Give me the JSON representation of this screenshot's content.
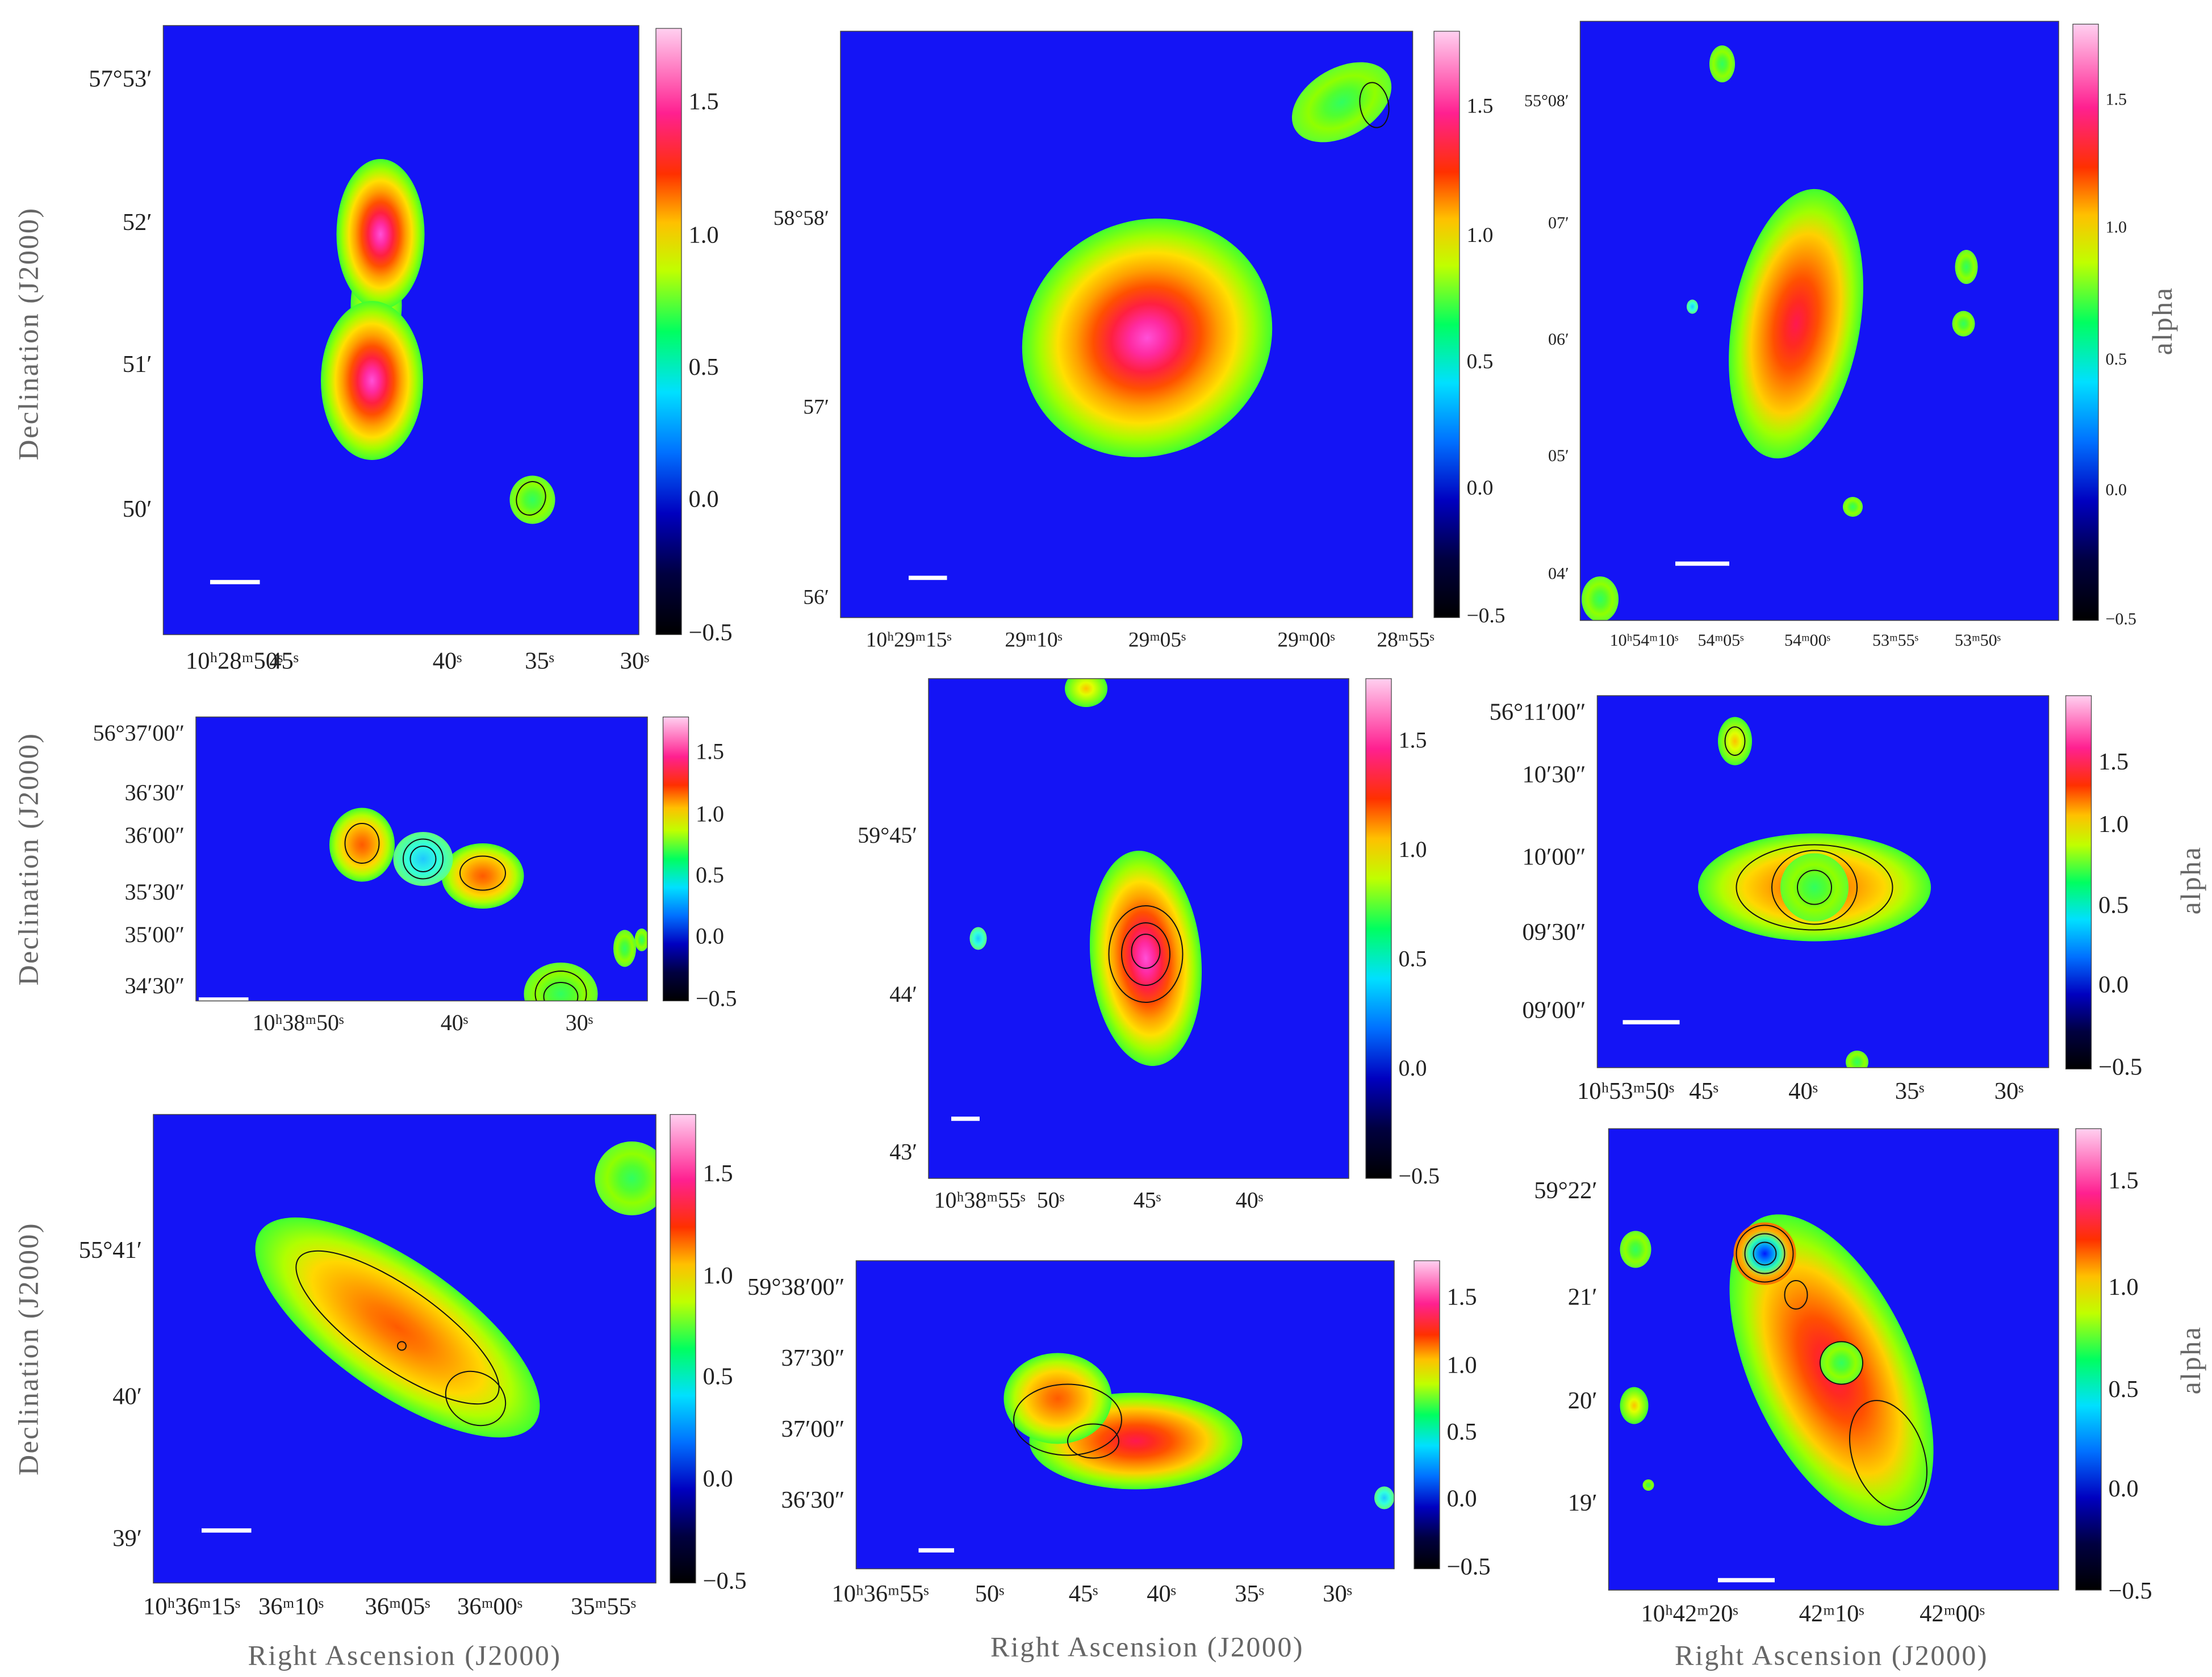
{
  "panels": [
    {
      "dec_labels": [
        "57°53′",
        "52′",
        "51′",
        "50′"
      ],
      "ra_labels": [
        "10ʰ28ᵐ50ˢ",
        "45ˢ",
        "40ˢ",
        "35ˢ",
        "30ˢ"
      ],
      "colorbar_ticks": [
        "1.5",
        "1.0",
        "0.5",
        "0.0",
        "−0.5"
      ],
      "ylabel": "Declination (J2000)"
    },
    {
      "dec_labels": [
        "58°58′",
        "57′",
        "56′"
      ],
      "ra_labels": [
        "10ʰ29ᵐ15ˢ",
        "29ᵐ10ˢ",
        "29ᵐ05ˢ",
        "29ᵐ00ˢ",
        "28ᵐ55ˢ"
      ],
      "colorbar_ticks": [
        "1.5",
        "1.0",
        "0.5",
        "0.0",
        "−0.5"
      ]
    },
    {
      "dec_labels": [
        "55°08′",
        "07′",
        "06′",
        "05′",
        "04′"
      ],
      "ra_labels": [
        "10ʰ54ᵐ10ˢ",
        "54ᵐ05ˢ",
        "54ᵐ00ˢ",
        "53ᵐ55ˢ",
        "53ᵐ50ˢ"
      ],
      "colorbar_ticks": [
        "1.5",
        "1.0",
        "0.5",
        "0.0",
        "−0.5"
      ],
      "cbar_label": "alpha"
    },
    {
      "dec_labels": [
        "56°37′00″",
        "36′30″",
        "36′00″",
        "35′30″",
        "35′00″",
        "34′30″"
      ],
      "ra_labels": [
        "10ʰ38ᵐ50ˢ",
        "40ˢ",
        "30ˢ"
      ],
      "colorbar_ticks": [
        "1.5",
        "1.0",
        "0.5",
        "0.0",
        "−0.5"
      ],
      "ylabel": "Declination (J2000)"
    },
    {
      "dec_labels": [
        "59°45′",
        "44′",
        "43′"
      ],
      "ra_labels": [
        "10ʰ38ᵐ55ˢ",
        "50ˢ",
        "45ˢ",
        "40ˢ"
      ],
      "colorbar_ticks": [
        "1.5",
        "1.0",
        "0.5",
        "0.0",
        "−0.5"
      ]
    },
    {
      "dec_labels": [
        "56°11′00″",
        "10′30″",
        "10′00″",
        "09′30″",
        "09′00″"
      ],
      "ra_labels": [
        "10ʰ53ᵐ50ˢ",
        "45ˢ",
        "40ˢ",
        "35ˢ",
        "30ˢ"
      ],
      "colorbar_ticks": [
        "1.5",
        "1.0",
        "0.5",
        "0.0",
        "−0.5"
      ],
      "cbar_label": "alpha"
    },
    {
      "dec_labels": [
        "55°41′",
        "40′",
        "39′"
      ],
      "ra_labels": [
        "10ʰ36ᵐ15ˢ",
        "36ᵐ10ˢ",
        "36ᵐ05ˢ",
        "36ᵐ00ˢ",
        "35ᵐ55ˢ"
      ],
      "colorbar_ticks": [
        "1.5",
        "1.0",
        "0.5",
        "0.0",
        "−0.5"
      ],
      "ylabel": "Declination (J2000)",
      "xlabel": "Right Ascension (J2000)"
    },
    {
      "dec_labels": [
        "59°38′00″",
        "37′30″",
        "37′00″",
        "36′30″"
      ],
      "ra_labels": [
        "10ʰ36ᵐ55ˢ",
        "50ˢ",
        "45ˢ",
        "40ˢ",
        "35ˢ",
        "30ˢ"
      ],
      "colorbar_ticks": [
        "1.5",
        "1.0",
        "0.5",
        "0.0",
        "−0.5"
      ],
      "xlabel": "Right Ascension (J2000)"
    },
    {
      "dec_labels": [
        "59°22′",
        "21′",
        "20′",
        "19′"
      ],
      "ra_labels": [
        "10ʰ42ᵐ20ˢ",
        "42ᵐ10ˢ",
        "42ᵐ00ˢ"
      ],
      "colorbar_ticks": [
        "1.5",
        "1.0",
        "0.5",
        "0.0",
        "−0.5"
      ],
      "cbar_label": "alpha",
      "xlabel": "Right Ascension (J2000)"
    }
  ]
}
